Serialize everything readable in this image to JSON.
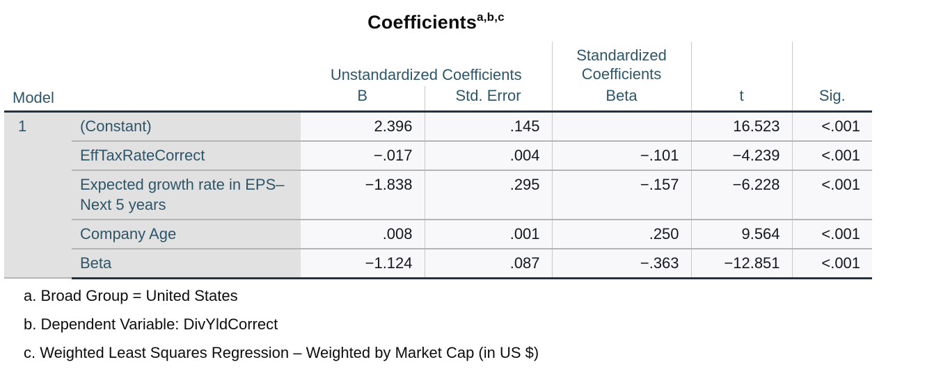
{
  "title": {
    "text": "Coefficients",
    "superscript": "a,b,c"
  },
  "table": {
    "stub_header": "Model",
    "model_number": "1",
    "group_headers": {
      "unstandardized": "Unstandardized Coefficients",
      "standardized": "Standardized Coefficients"
    },
    "columns": {
      "b": "B",
      "std_error": "Std. Error",
      "beta": "Beta",
      "t": "t",
      "sig": "Sig."
    },
    "rows": [
      {
        "label": "(Constant)",
        "values": [
          "2.396",
          ".145",
          "",
          "16.523",
          "<.001"
        ]
      },
      {
        "label": "EffTaxRateCorrect",
        "values": [
          "−.017",
          ".004",
          "−.101",
          "−4.239",
          "<.001"
        ]
      },
      {
        "label": "Expected growth rate in EPS– Next 5 years",
        "values": [
          "−1.838",
          ".295",
          "−.157",
          "−6.228",
          "<.001"
        ]
      },
      {
        "label": "Company Age",
        "values": [
          ".008",
          ".001",
          ".250",
          "9.564",
          "<.001"
        ]
      },
      {
        "label": "Beta",
        "values": [
          "−1.124",
          ".087",
          "−.363",
          "−12.851",
          "<.001"
        ]
      }
    ]
  },
  "footnotes": [
    "a. Broad Group = United States",
    "b. Dependent Variable: DivYldCorrect",
    "c. Weighted Least Squares Regression – Weighted by Market Cap (in US $)"
  ],
  "colors": {
    "header_text": "#2e5568",
    "data_text": "#14181c",
    "stub_background": "#e1e1e1",
    "cell_background": "#f8f8fa",
    "strong_border": "#233240",
    "light_divider": "#c9c9cb",
    "row_separator": "#b4b4b6"
  }
}
